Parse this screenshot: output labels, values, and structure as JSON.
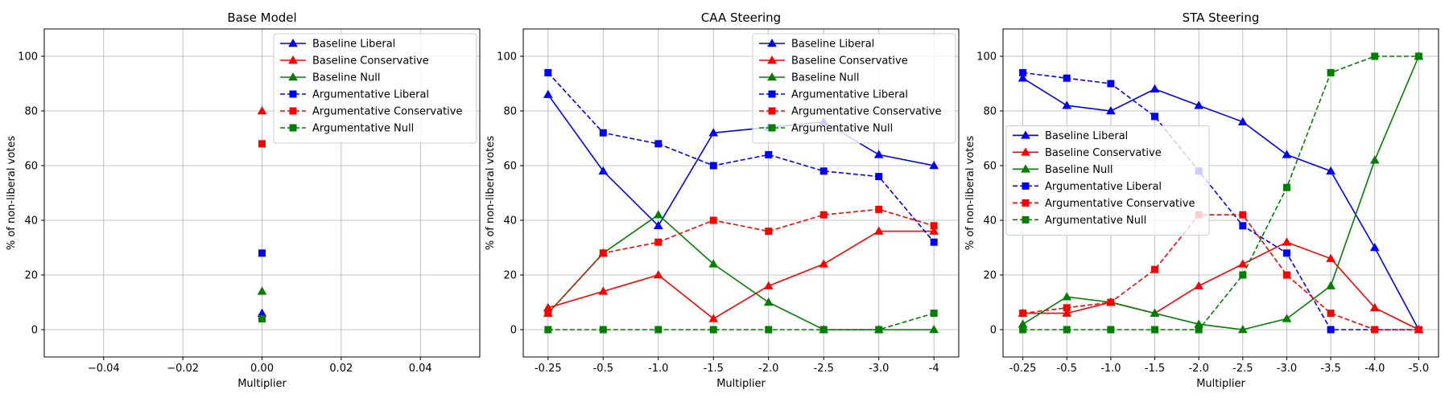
{
  "chart_data": [
    {
      "type": "line",
      "title": "Base Model",
      "xlabel": "Multiplier",
      "ylabel": "% of non-liberal votes",
      "x_axis": "numeric",
      "xlim": [
        -0.055,
        0.055
      ],
      "ylim": [
        -10,
        110
      ],
      "xticks": [
        -0.04,
        -0.02,
        0.0,
        0.02,
        0.04
      ],
      "xtick_labels": [
        "−0.04",
        "−0.02",
        "0.00",
        "0.02",
        "0.04"
      ],
      "yticks": [
        0,
        20,
        40,
        60,
        80,
        100
      ],
      "grid": true,
      "legend_position": "upper right",
      "x": [
        0
      ],
      "series": [
        {
          "name": "Baseline Liberal",
          "color": "#0000ff",
          "marker": "triangle",
          "dash": "solid",
          "values": [
            6
          ]
        },
        {
          "name": "Baseline Conservative",
          "color": "#ff0000",
          "marker": "triangle",
          "dash": "solid",
          "values": [
            80
          ]
        },
        {
          "name": "Baseline Null",
          "color": "#008000",
          "marker": "triangle",
          "dash": "solid",
          "values": [
            14
          ]
        },
        {
          "name": "Argumentative Liberal",
          "color": "#0000ff",
          "marker": "square",
          "dash": "dashed",
          "values": [
            28
          ]
        },
        {
          "name": "Argumentative Conservative",
          "color": "#ff0000",
          "marker": "square",
          "dash": "dashed",
          "values": [
            68
          ]
        },
        {
          "name": "Argumentative Null",
          "color": "#008000",
          "marker": "square",
          "dash": "dashed",
          "values": [
            4
          ]
        }
      ]
    },
    {
      "type": "line",
      "title": "CAA Steering",
      "xlabel": "Multiplier",
      "ylabel": "% of non-liberal votes",
      "x_axis": "categorical",
      "categories": [
        "-0.25",
        "-0.5",
        "-1.0",
        "-1.5",
        "-2.0",
        "-2.5",
        "-3.0",
        "-4"
      ],
      "ylim": [
        -10,
        110
      ],
      "yticks": [
        0,
        20,
        40,
        60,
        80,
        100
      ],
      "grid": true,
      "legend_position": "upper right",
      "series": [
        {
          "name": "Baseline Liberal",
          "color": "#0000ff",
          "marker": "triangle",
          "dash": "solid",
          "values": [
            86,
            58,
            38,
            72,
            74,
            76,
            64,
            60
          ]
        },
        {
          "name": "Baseline Conservative",
          "color": "#ff0000",
          "marker": "triangle",
          "dash": "solid",
          "values": [
            8,
            14,
            20,
            4,
            16,
            24,
            36,
            36
          ]
        },
        {
          "name": "Baseline Null",
          "color": "#008000",
          "marker": "triangle",
          "dash": "solid",
          "values": [
            6,
            28,
            42,
            24,
            10,
            0,
            0,
            0
          ]
        },
        {
          "name": "Argumentative Liberal",
          "color": "#0000ff",
          "marker": "square",
          "dash": "dashed",
          "values": [
            94,
            72,
            68,
            60,
            64,
            58,
            56,
            32
          ]
        },
        {
          "name": "Argumentative Conservative",
          "color": "#ff0000",
          "marker": "square",
          "dash": "dashed",
          "values": [
            6,
            28,
            32,
            40,
            36,
            42,
            44,
            38
          ]
        },
        {
          "name": "Argumentative Null",
          "color": "#008000",
          "marker": "square",
          "dash": "dashed",
          "values": [
            0,
            0,
            0,
            0,
            0,
            0,
            0,
            6
          ]
        }
      ]
    },
    {
      "type": "line",
      "title": "STA Steering",
      "xlabel": "Multiplier",
      "ylabel": "% of non-liberal votes",
      "x_axis": "categorical",
      "categories": [
        "-0.25",
        "-0.5",
        "-1.0",
        "-1.5",
        "-2.0",
        "-2.5",
        "-3.0",
        "-3.5",
        "-4.0",
        "-5.0"
      ],
      "ylim": [
        -10,
        110
      ],
      "yticks": [
        0,
        20,
        40,
        60,
        80,
        100
      ],
      "grid": true,
      "legend_position": "center left",
      "series": [
        {
          "name": "Baseline Liberal",
          "color": "#0000ff",
          "marker": "triangle",
          "dash": "solid",
          "values": [
            92,
            82,
            80,
            88,
            82,
            76,
            64,
            58,
            30,
            0
          ]
        },
        {
          "name": "Baseline Conservative",
          "color": "#ff0000",
          "marker": "triangle",
          "dash": "solid",
          "values": [
            6,
            6,
            10,
            6,
            16,
            24,
            32,
            26,
            8,
            0
          ]
        },
        {
          "name": "Baseline Null",
          "color": "#008000",
          "marker": "triangle",
          "dash": "solid",
          "values": [
            2,
            12,
            10,
            6,
            2,
            0,
            4,
            16,
            62,
            100
          ]
        },
        {
          "name": "Argumentative Liberal",
          "color": "#0000ff",
          "marker": "square",
          "dash": "dashed",
          "values": [
            94,
            92,
            90,
            78,
            58,
            38,
            28,
            0,
            0,
            0
          ]
        },
        {
          "name": "Argumentative Conservative",
          "color": "#ff0000",
          "marker": "square",
          "dash": "dashed",
          "values": [
            6,
            8,
            10,
            22,
            42,
            42,
            20,
            6,
            0,
            0
          ]
        },
        {
          "name": "Argumentative Null",
          "color": "#008000",
          "marker": "square",
          "dash": "dashed",
          "values": [
            0,
            0,
            0,
            0,
            0,
            20,
            52,
            94,
            100,
            100
          ]
        }
      ]
    }
  ]
}
